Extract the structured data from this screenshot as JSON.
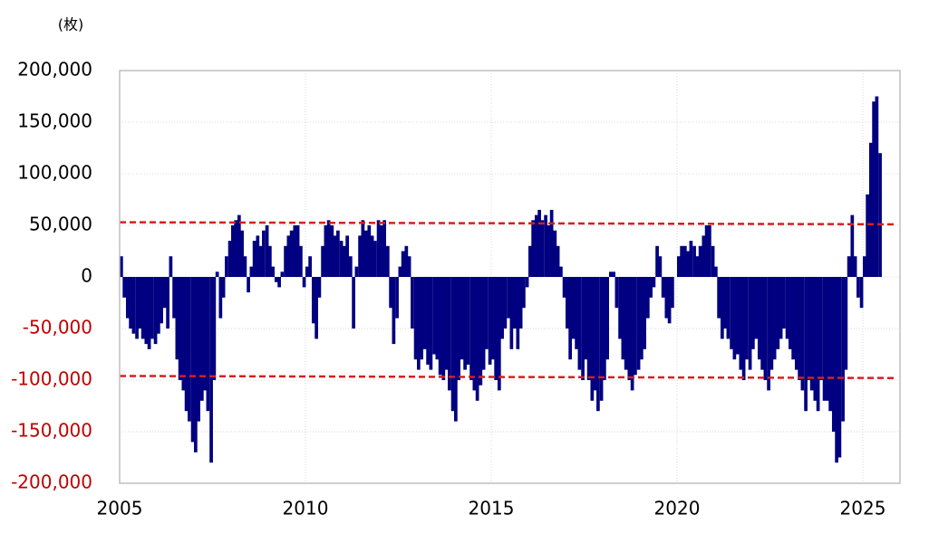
{
  "chart_data": {
    "type": "bar",
    "y_axis_label": "(枚)",
    "color": "#000080",
    "xlim": [
      2005,
      2026
    ],
    "xticks": [
      2005,
      2010,
      2015,
      2020,
      2025
    ],
    "ylim": [
      -200000,
      200000
    ],
    "yticks": [
      {
        "value": -200000,
        "label": "-200,000"
      },
      {
        "value": -150000,
        "label": "-150,000"
      },
      {
        "value": -100000,
        "label": "-100,000"
      },
      {
        "value": -50000,
        "label": "-50,000"
      },
      0,
      {
        "value": 50000,
        "label": "50,000"
      },
      {
        "value": 100000,
        "label": "100,000"
      },
      {
        "value": 150000,
        "label": "150,000"
      },
      {
        "value": 200000,
        "label": "200,000"
      }
    ],
    "negative_tick_color": "#c00000",
    "grid": true,
    "x": [
      2005,
      2005.08,
      2005.17,
      2005.25,
      2005.33,
      2005.42,
      2005.5,
      2005.58,
      2005.67,
      2005.75,
      2005.83,
      2005.92,
      2006,
      2006.08,
      2006.17,
      2006.25,
      2006.33,
      2006.42,
      2006.5,
      2006.58,
      2006.67,
      2006.75,
      2006.83,
      2006.92,
      2007,
      2007.08,
      2007.17,
      2007.25,
      2007.33,
      2007.42,
      2007.5,
      2007.58,
      2007.67,
      2007.75,
      2007.83,
      2007.92,
      2008,
      2008.08,
      2008.17,
      2008.25,
      2008.33,
      2008.42,
      2008.5,
      2008.58,
      2008.67,
      2008.75,
      2008.83,
      2008.92,
      2009,
      2009.08,
      2009.17,
      2009.25,
      2009.33,
      2009.42,
      2009.5,
      2009.58,
      2009.67,
      2009.75,
      2009.83,
      2009.92,
      2010,
      2010.08,
      2010.17,
      2010.25,
      2010.33,
      2010.42,
      2010.5,
      2010.58,
      2010.67,
      2010.75,
      2010.83,
      2010.92,
      2011,
      2011.08,
      2011.17,
      2011.25,
      2011.33,
      2011.42,
      2011.5,
      2011.58,
      2011.67,
      2011.75,
      2011.83,
      2011.92,
      2012,
      2012.08,
      2012.17,
      2012.25,
      2012.33,
      2012.42,
      2012.5,
      2012.58,
      2012.67,
      2012.75,
      2012.83,
      2012.92,
      2013,
      2013.08,
      2013.17,
      2013.25,
      2013.33,
      2013.42,
      2013.5,
      2013.58,
      2013.67,
      2013.75,
      2013.83,
      2013.92,
      2014,
      2014.08,
      2014.17,
      2014.25,
      2014.33,
      2014.42,
      2014.5,
      2014.58,
      2014.67,
      2014.75,
      2014.83,
      2014.92,
      2015,
      2015.08,
      2015.17,
      2015.25,
      2015.33,
      2015.42,
      2015.5,
      2015.58,
      2015.67,
      2015.75,
      2015.83,
      2015.92,
      2016,
      2016.08,
      2016.17,
      2016.25,
      2016.33,
      2016.42,
      2016.5,
      2016.58,
      2016.67,
      2016.75,
      2016.83,
      2016.92,
      2017,
      2017.08,
      2017.17,
      2017.25,
      2017.33,
      2017.42,
      2017.5,
      2017.58,
      2017.67,
      2017.75,
      2017.83,
      2017.92,
      2018,
      2018.08,
      2018.17,
      2018.25,
      2018.33,
      2018.42,
      2018.5,
      2018.58,
      2018.67,
      2018.75,
      2018.83,
      2018.92,
      2019,
      2019.08,
      2019.17,
      2019.25,
      2019.33,
      2019.42,
      2019.5,
      2019.58,
      2019.67,
      2019.75,
      2019.83,
      2019.92,
      2020,
      2020.08,
      2020.17,
      2020.25,
      2020.33,
      2020.42,
      2020.5,
      2020.58,
      2020.67,
      2020.75,
      2020.83,
      2020.92,
      2021,
      2021.08,
      2021.17,
      2021.25,
      2021.33,
      2021.42,
      2021.5,
      2021.58,
      2021.67,
      2021.75,
      2021.83,
      2021.92,
      2022,
      2022.08,
      2022.17,
      2022.25,
      2022.33,
      2022.42,
      2022.5,
      2022.58,
      2022.67,
      2022.75,
      2022.83,
      2022.92,
      2023,
      2023.08,
      2023.17,
      2023.25,
      2023.33,
      2023.42,
      2023.5,
      2023.58,
      2023.67,
      2023.75,
      2023.83,
      2023.92,
      2024,
      2024.08,
      2024.17,
      2024.25,
      2024.33,
      2024.42,
      2024.5,
      2024.58,
      2024.67,
      2024.75,
      2024.83,
      2024.92,
      2025,
      2025.08,
      2025.17,
      2025.25,
      2025.33,
      2025.42
    ],
    "values": [
      20000,
      -20000,
      -40000,
      -50000,
      -55000,
      -60000,
      -50000,
      -60000,
      -65000,
      -70000,
      -60000,
      -65000,
      -55000,
      -45000,
      -30000,
      -50000,
      20000,
      -40000,
      -80000,
      -100000,
      -110000,
      -130000,
      -140000,
      -160000,
      -170000,
      -140000,
      -120000,
      -110000,
      -130000,
      -180000,
      -100000,
      5000,
      -40000,
      -20000,
      20000,
      35000,
      50000,
      55000,
      60000,
      45000,
      20000,
      -15000,
      10000,
      35000,
      40000,
      30000,
      45000,
      50000,
      30000,
      10000,
      -5000,
      -10000,
      5000,
      30000,
      40000,
      45000,
      50000,
      50000,
      30000,
      -10000,
      10000,
      20000,
      -45000,
      -60000,
      -20000,
      30000,
      50000,
      55000,
      50000,
      40000,
      45000,
      35000,
      30000,
      40000,
      20000,
      -50000,
      10000,
      40000,
      55000,
      45000,
      50000,
      40000,
      35000,
      55000,
      50000,
      55000,
      30000,
      -30000,
      -65000,
      -40000,
      10000,
      25000,
      30000,
      20000,
      -50000,
      -80000,
      -90000,
      -80000,
      -70000,
      -85000,
      -90000,
      -75000,
      -80000,
      -95000,
      -100000,
      -90000,
      -110000,
      -130000,
      -140000,
      -100000,
      -80000,
      -90000,
      -85000,
      -100000,
      -110000,
      -120000,
      -105000,
      -90000,
      -70000,
      -85000,
      -80000,
      -100000,
      -110000,
      -60000,
      -50000,
      -40000,
      -70000,
      -50000,
      -70000,
      -50000,
      -30000,
      -10000,
      30000,
      55000,
      60000,
      65000,
      55000,
      60000,
      50000,
      65000,
      45000,
      30000,
      10000,
      -20000,
      -50000,
      -80000,
      -60000,
      -70000,
      -90000,
      -100000,
      -80000,
      -100000,
      -120000,
      -110000,
      -130000,
      -120000,
      -100000,
      -80000,
      5000,
      5000,
      -30000,
      -60000,
      -80000,
      -90000,
      -100000,
      -110000,
      -95000,
      -90000,
      -80000,
      -70000,
      -40000,
      -20000,
      -10000,
      30000,
      20000,
      -20000,
      -40000,
      -45000,
      -30000,
      0,
      20000,
      30000,
      30000,
      25000,
      35000,
      30000,
      20000,
      30000,
      40000,
      50000,
      50000,
      30000,
      10000,
      -40000,
      -60000,
      -50000,
      -60000,
      -70000,
      -80000,
      -75000,
      -90000,
      -100000,
      -80000,
      -90000,
      -70000,
      -60000,
      -80000,
      -90000,
      -100000,
      -110000,
      -90000,
      -80000,
      -70000,
      -60000,
      -50000,
      -60000,
      -70000,
      -80000,
      -90000,
      -100000,
      -110000,
      -130000,
      -100000,
      -110000,
      -120000,
      -130000,
      -100000,
      -120000,
      -120000,
      -130000,
      -150000,
      -180000,
      -175000,
      -140000,
      -90000,
      20000,
      60000,
      20000,
      -20000,
      -30000,
      20000,
      80000,
      130000,
      170000,
      175000,
      120000
    ],
    "reference_lines": [
      {
        "color": "#d42020",
        "x": [
          2005,
          2025.9
        ],
        "values": [
          53000,
          51000
        ]
      },
      {
        "color": "#d42020",
        "x": [
          2005,
          2025.9
        ],
        "values": [
          -96000,
          -98000
        ]
      }
    ]
  }
}
